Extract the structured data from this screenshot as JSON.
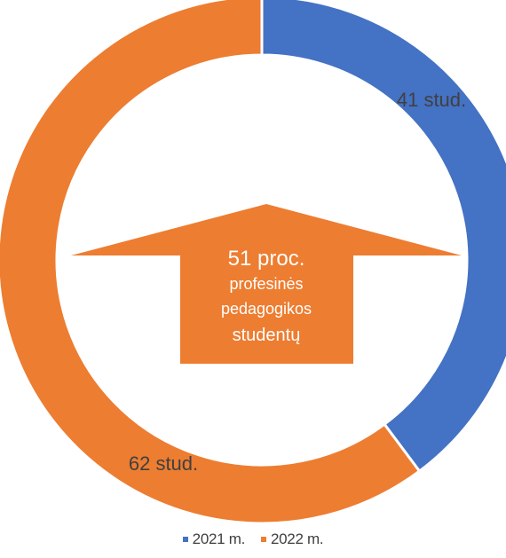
{
  "chart_data": {
    "type": "pie",
    "donut": true,
    "categories": [
      "2021 m.",
      "2022 m."
    ],
    "values": [
      41,
      62
    ],
    "data_labels": [
      "41 stud.",
      "62 stud."
    ],
    "colors": [
      "#4472c4",
      "#ed7d31"
    ],
    "legend_position": "bottom",
    "center_callout": {
      "lines": [
        "51 proc.",
        "profesinės",
        "pedagogikos",
        "studentų"
      ],
      "color": "#ed7d31",
      "shape": "up-arrow"
    }
  }
}
